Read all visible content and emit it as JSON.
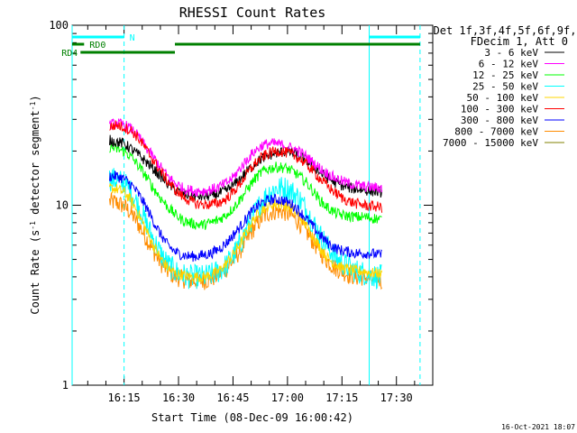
{
  "chart_data": {
    "type": "line",
    "title": "RHESSI Count Rates",
    "xlabel": "Start Time (08-Dec-09 16:00:42)",
    "ylabel_main": "Count Rate (s",
    "ylabel_sup1": "-1",
    "ylabel_mid": " detector segment",
    "ylabel_sup2": "-1",
    "ylabel_end": ")",
    "yscale": "log",
    "ylim": [
      1,
      100
    ],
    "yticks": [
      {
        "value": 1,
        "label": "1"
      },
      {
        "value": 10,
        "label": "10"
      },
      {
        "value": 100,
        "label": "100"
      }
    ],
    "xlim": [
      "16:00:42",
      "17:40:00"
    ],
    "xticks": [
      {
        "time": "16:15",
        "label": "16:15"
      },
      {
        "time": "16:30",
        "label": "16:30"
      },
      {
        "time": "16:45",
        "label": "16:45"
      },
      {
        "time": "17:00",
        "label": "17:00"
      },
      {
        "time": "17:15",
        "label": "17:15"
      },
      {
        "time": "17:30",
        "label": "17:30"
      }
    ],
    "legend_header": [
      "Det 1f,3f,4f,5f,6f,9f,",
      "FDecim 1, Att 0"
    ],
    "legend_placement": "right",
    "timestamp": "16-Oct-2021 18:07",
    "time_axis": [
      "16:11",
      "16:13",
      "16:15",
      "16:17",
      "16:19",
      "16:21",
      "16:23",
      "16:25",
      "16:27",
      "16:29",
      "16:31",
      "16:33",
      "16:35",
      "16:37",
      "16:39",
      "16:41",
      "16:43",
      "16:45",
      "16:47",
      "16:49",
      "16:51",
      "16:53",
      "16:55",
      "16:57",
      "16:59",
      "17:01",
      "17:03",
      "17:05",
      "17:07",
      "17:09",
      "17:11",
      "17:13",
      "17:15",
      "17:17",
      "17:19",
      "17:21",
      "17:23",
      "17:25",
      "17:26"
    ],
    "series": [
      {
        "name": "3 - 6 keV",
        "color": "#000000",
        "values": [
          23,
          22.5,
          22,
          20.5,
          19,
          17.5,
          16,
          14.5,
          13.2,
          12.2,
          11.6,
          11.3,
          11.2,
          11.2,
          11.3,
          11.6,
          12,
          12.8,
          14,
          15.5,
          17,
          18.2,
          19,
          19.5,
          19.8,
          19.6,
          19,
          17.8,
          16.5,
          15.2,
          14.2,
          13.4,
          12.9,
          12.5,
          12.3,
          12.2,
          12,
          11.9,
          11.8
        ]
      },
      {
        "name": "6 - 12 keV",
        "color": "#ff00ff",
        "values": [
          28,
          28.5,
          28,
          26.5,
          24,
          21,
          18.5,
          16.3,
          14.5,
          13.3,
          12.5,
          12.1,
          12,
          12,
          12.2,
          12.6,
          13.2,
          14.2,
          16,
          18,
          20,
          21.5,
          22,
          22,
          21.5,
          20.8,
          20,
          18.8,
          17.3,
          16,
          15,
          14.2,
          13.6,
          13.2,
          12.9,
          12.7,
          12.6,
          12.5,
          12.4
        ]
      },
      {
        "name": "12 - 25 keV",
        "color": "#00ff00",
        "values": [
          21,
          20.5,
          20,
          18.5,
          16.5,
          14.5,
          12.5,
          11,
          9.8,
          8.9,
          8.3,
          8,
          7.8,
          7.8,
          8,
          8.3,
          8.8,
          9.6,
          10.8,
          12.3,
          14,
          15.3,
          16,
          16.3,
          16.2,
          15.6,
          14.7,
          13.5,
          12,
          10.6,
          9.7,
          9.1,
          8.8,
          8.7,
          8.6,
          8.6,
          8.5,
          8.4,
          8.3
        ]
      },
      {
        "name": "25 - 50 keV",
        "color": "#00ffff",
        "values": [
          14,
          13.8,
          13.2,
          11.8,
          9.8,
          8,
          6.5,
          5.4,
          4.7,
          4.3,
          4.1,
          4,
          4,
          4,
          4.1,
          4.3,
          4.6,
          5.2,
          6.1,
          7.5,
          9,
          10.5,
          11.8,
          12.4,
          12.5,
          12,
          11,
          9.6,
          8,
          6.8,
          5.9,
          5.2,
          4.8,
          4.5,
          4.3,
          4.2,
          4.1,
          4,
          4
        ]
      },
      {
        "name": "50 - 100 keV",
        "color": "#ffd700",
        "values": [
          12.5,
          12.3,
          11.8,
          10.6,
          8.9,
          7.3,
          6,
          5.1,
          4.5,
          4.2,
          4.1,
          4,
          4,
          4,
          4.1,
          4.3,
          4.7,
          5.3,
          6.1,
          7.3,
          8.5,
          9.5,
          10,
          10.2,
          10.1,
          9.6,
          8.8,
          7.8,
          6.7,
          5.8,
          5.1,
          4.7,
          4.5,
          4.4,
          4.3,
          4.3,
          4.2,
          4.2,
          4.1
        ]
      },
      {
        "name": "100 - 300 keV",
        "color": "#ff0000",
        "values": [
          27,
          28,
          27,
          26,
          23.5,
          20.5,
          17.8,
          15.5,
          13.6,
          12.2,
          11.2,
          10.6,
          10.2,
          10.1,
          10.1,
          10.3,
          10.8,
          11.8,
          13.2,
          15,
          17,
          18.5,
          19.5,
          20,
          19.8,
          19.2,
          18.3,
          17,
          15.5,
          14,
          12.8,
          11.8,
          11,
          10.5,
          10.2,
          10,
          9.9,
          9.8,
          9.7
        ]
      },
      {
        "name": "300 - 800 keV",
        "color": "#0000ff",
        "values": [
          14.5,
          14.5,
          14,
          13,
          11.5,
          9.8,
          8.2,
          6.9,
          6,
          5.5,
          5.3,
          5.2,
          5.2,
          5.3,
          5.4,
          5.7,
          6.1,
          6.8,
          7.6,
          8.6,
          9.6,
          10.3,
          10.7,
          10.8,
          10.6,
          10.2,
          9.4,
          8.5,
          7.6,
          6.8,
          6.2,
          5.8,
          5.6,
          5.5,
          5.4,
          5.4,
          5.4,
          5.3,
          5.3
        ]
      },
      {
        "name": "800 - 7000 keV",
        "color": "#ff8c00",
        "values": [
          10.5,
          10.3,
          9.9,
          9,
          7.8,
          6.6,
          5.6,
          4.8,
          4.3,
          4,
          3.9,
          3.8,
          3.8,
          3.8,
          3.9,
          4.1,
          4.4,
          4.9,
          5.6,
          6.5,
          7.6,
          8.5,
          9.1,
          9.3,
          9.2,
          8.8,
          8.1,
          7.2,
          6.3,
          5.5,
          4.9,
          4.5,
          4.3,
          4.1,
          4,
          4,
          3.9,
          3.9,
          3.8
        ]
      },
      {
        "name": "7000 - 15000 keV",
        "color": "#808000",
        "values": []
      }
    ],
    "annotations": [
      {
        "label": "N",
        "start": "16:00:42",
        "end": "16:15:00",
        "color": "#00ffff"
      },
      {
        "label": "",
        "start": "17:22:30",
        "end": "17:36:30",
        "color": "#00ffff"
      },
      {
        "label": "RD0",
        "start": "16:00:42",
        "end": "16:04:00",
        "color": "#008000"
      },
      {
        "label": "",
        "start": "16:29:00",
        "end": "17:36:30",
        "color": "#008000"
      },
      {
        "label": "RD4",
        "start": "16:03:00",
        "end": "16:29:00",
        "color": "#008000"
      }
    ],
    "vlines": [
      {
        "time": "16:00:42",
        "style": "solid",
        "color": "#00ffff"
      },
      {
        "time": "16:15:00",
        "style": "dashed",
        "color": "#00ffff"
      },
      {
        "time": "17:22:30",
        "style": "solid",
        "color": "#00ffff"
      },
      {
        "time": "17:36:30",
        "style": "dashed",
        "color": "#00ffff"
      }
    ]
  }
}
